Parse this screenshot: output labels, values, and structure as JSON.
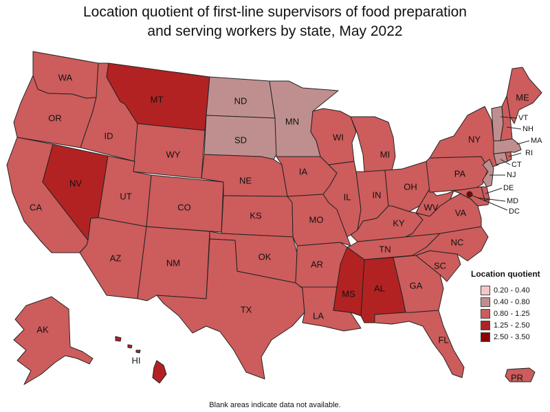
{
  "title": "Location quotient of first-line supervisors of food preparation and serving workers by state, May 2022",
  "footnote": "Blank areas indicate data not available.",
  "legend": {
    "title": "Location quotient",
    "items": [
      {
        "label": "0.20 - 0.40",
        "color": "#f6c6c6"
      },
      {
        "label": "0.40 - 0.80",
        "color": "#bf8f8f"
      },
      {
        "label": "0.80 - 1.25",
        "color": "#cd5c5c"
      },
      {
        "label": "1.25 - 2.50",
        "color": "#b22222"
      },
      {
        "label": "2.50 - 3.50",
        "color": "#8b0000"
      }
    ]
  },
  "states": [
    {
      "abbr": "WA",
      "class": "0.80 - 1.25"
    },
    {
      "abbr": "OR",
      "class": "0.80 - 1.25"
    },
    {
      "abbr": "CA",
      "class": "0.80 - 1.25"
    },
    {
      "abbr": "ID",
      "class": "0.80 - 1.25"
    },
    {
      "abbr": "NV",
      "class": "1.25 - 2.50"
    },
    {
      "abbr": "MT",
      "class": "1.25 - 2.50"
    },
    {
      "abbr": "WY",
      "class": "0.80 - 1.25"
    },
    {
      "abbr": "UT",
      "class": "0.80 - 1.25"
    },
    {
      "abbr": "AZ",
      "class": "0.80 - 1.25"
    },
    {
      "abbr": "CO",
      "class": "0.80 - 1.25"
    },
    {
      "abbr": "NM",
      "class": "0.80 - 1.25"
    },
    {
      "abbr": "ND",
      "class": "0.40 - 0.80"
    },
    {
      "abbr": "SD",
      "class": "0.40 - 0.80"
    },
    {
      "abbr": "NE",
      "class": "0.80 - 1.25"
    },
    {
      "abbr": "KS",
      "class": "0.80 - 1.25"
    },
    {
      "abbr": "OK",
      "class": "0.80 - 1.25"
    },
    {
      "abbr": "TX",
      "class": "0.80 - 1.25"
    },
    {
      "abbr": "MN",
      "class": "0.40 - 0.80"
    },
    {
      "abbr": "IA",
      "class": "0.80 - 1.25"
    },
    {
      "abbr": "MO",
      "class": "0.80 - 1.25"
    },
    {
      "abbr": "AR",
      "class": "0.80 - 1.25"
    },
    {
      "abbr": "LA",
      "class": "0.80 - 1.25"
    },
    {
      "abbr": "WI",
      "class": "0.80 - 1.25"
    },
    {
      "abbr": "IL",
      "class": "0.80 - 1.25"
    },
    {
      "abbr": "MS",
      "class": "1.25 - 2.50"
    },
    {
      "abbr": "MI",
      "class": "0.80 - 1.25"
    },
    {
      "abbr": "IN",
      "class": "0.80 - 1.25"
    },
    {
      "abbr": "KY",
      "class": "0.80 - 1.25"
    },
    {
      "abbr": "TN",
      "class": "0.80 - 1.25"
    },
    {
      "abbr": "AL",
      "class": "1.25 - 2.50"
    },
    {
      "abbr": "OH",
      "class": "0.80 - 1.25"
    },
    {
      "abbr": "GA",
      "class": "0.80 - 1.25"
    },
    {
      "abbr": "FL",
      "class": "0.80 - 1.25"
    },
    {
      "abbr": "SC",
      "class": "0.80 - 1.25"
    },
    {
      "abbr": "NC",
      "class": "0.80 - 1.25"
    },
    {
      "abbr": "VA",
      "class": "0.80 - 1.25"
    },
    {
      "abbr": "WV",
      "class": "0.80 - 1.25"
    },
    {
      "abbr": "PA",
      "class": "0.80 - 1.25"
    },
    {
      "abbr": "NY",
      "class": "0.80 - 1.25"
    },
    {
      "abbr": "ME",
      "class": "0.80 - 1.25"
    },
    {
      "abbr": "VT",
      "class": "0.40 - 0.80"
    },
    {
      "abbr": "NH",
      "class": "0.80 - 1.25"
    },
    {
      "abbr": "MA",
      "class": "0.40 - 0.80"
    },
    {
      "abbr": "RI",
      "class": "0.80 - 1.25"
    },
    {
      "abbr": "CT",
      "class": "0.40 - 0.80"
    },
    {
      "abbr": "NJ",
      "class": "0.40 - 0.80"
    },
    {
      "abbr": "DE",
      "class": "0.80 - 1.25"
    },
    {
      "abbr": "MD",
      "class": "0.80 - 1.25"
    },
    {
      "abbr": "DC",
      "class": "2.50 - 3.50"
    },
    {
      "abbr": "AK",
      "class": "0.80 - 1.25"
    },
    {
      "abbr": "HI",
      "class": "1.25 - 2.50"
    },
    {
      "abbr": "PR",
      "class": "0.80 - 1.25"
    }
  ]
}
